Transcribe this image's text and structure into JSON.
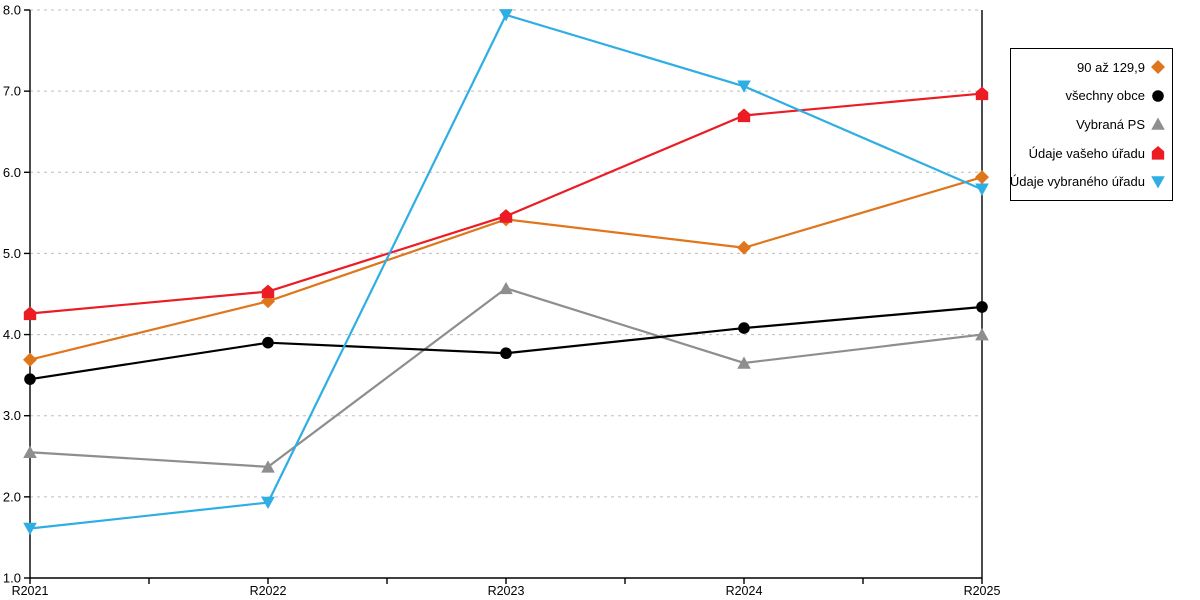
{
  "chart_data": {
    "type": "line",
    "categories": [
      "R2021",
      "R2022",
      "R2023",
      "R2024",
      "R2025"
    ],
    "series": [
      {
        "name": "90 až 129,9",
        "values": [
          3.69,
          4.41,
          5.42,
          5.07,
          5.94
        ],
        "color": "#E0761C",
        "marker": "diamond"
      },
      {
        "name": "všechny obce",
        "values": [
          3.45,
          3.9,
          3.77,
          4.08,
          4.34
        ],
        "color": "#000000",
        "marker": "circle"
      },
      {
        "name": "Vybraná PS",
        "values": [
          2.55,
          2.37,
          4.57,
          3.65,
          4.0
        ],
        "color": "#8E8E8E",
        "marker": "triangle-up"
      },
      {
        "name": "Údaje vašeho úřadu",
        "values": [
          4.26,
          4.53,
          5.46,
          6.7,
          6.97
        ],
        "color": "#EB1C24",
        "marker": "pentagon"
      },
      {
        "name": "Údaje vybraného úřadu",
        "values": [
          1.61,
          1.93,
          7.94,
          7.06,
          5.79
        ],
        "color": "#2FAEE3",
        "marker": "triangle-down"
      }
    ],
    "draw_order": [
      2,
      0,
      1,
      3,
      4
    ],
    "ylim": [
      1.0,
      8.0
    ],
    "ytick_step": 1.0,
    "ytick_labels": [
      "1.0",
      "2.0",
      "3.0",
      "4.0",
      "5.0",
      "6.0",
      "7.0",
      "8.0"
    ],
    "xlabel": "",
    "ylabel": "",
    "title": "",
    "grid": "horizontal-dashed",
    "grid_color": "#bdbdbd",
    "axis_color": "#000000",
    "legend_position": "right"
  }
}
